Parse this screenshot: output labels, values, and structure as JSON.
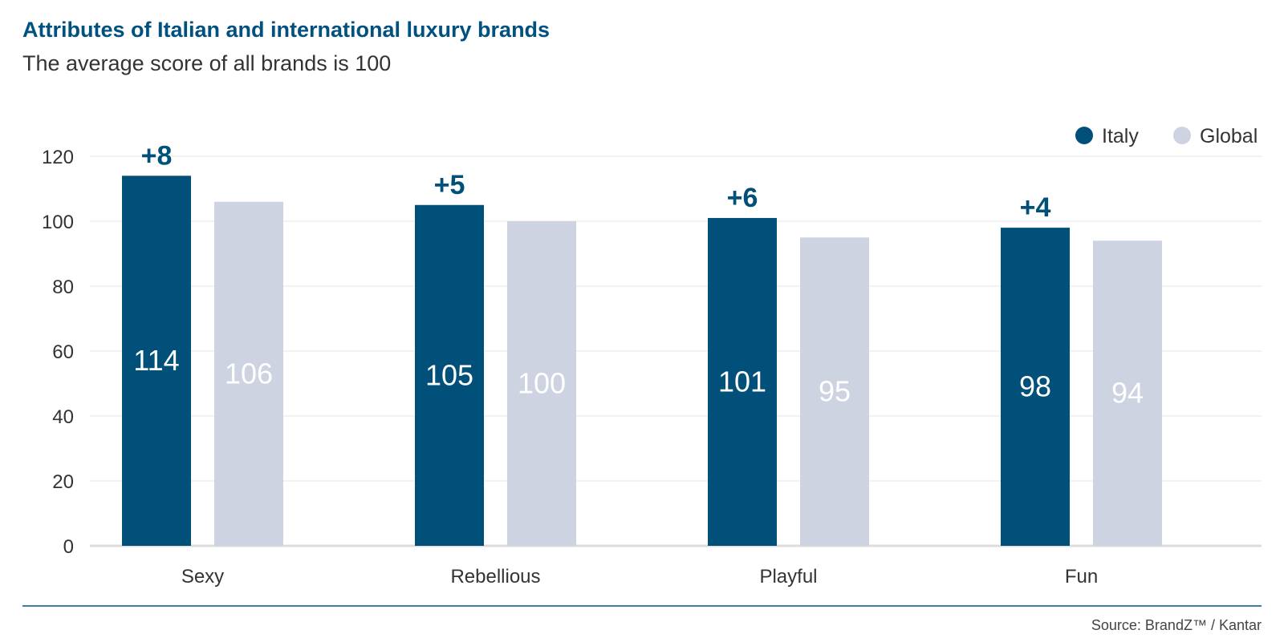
{
  "header": {
    "title": "Attributes of Italian and international luxury brands",
    "subtitle": "The average score of all brands is 100"
  },
  "footer": {
    "source": "Source: BrandZ™ / Kantar"
  },
  "colors": {
    "italy": "#005079",
    "global": "#cdd3e1",
    "title": "#005080",
    "grid": "#e6e6e6"
  },
  "chart_data": {
    "type": "bar",
    "categories": [
      "Sexy",
      "Rebellious",
      "Playful",
      "Fun"
    ],
    "series": [
      {
        "name": "Italy",
        "values": [
          114,
          105,
          101,
          98
        ]
      },
      {
        "name": "Global",
        "values": [
          106,
          100,
          95,
          94
        ]
      }
    ],
    "differences": [
      "+8",
      "+5",
      "+6",
      "+4"
    ],
    "ylim": [
      0,
      120
    ],
    "yticks": [
      0,
      20,
      40,
      60,
      80,
      100,
      120
    ],
    "grid": true,
    "legend": "top-right"
  }
}
